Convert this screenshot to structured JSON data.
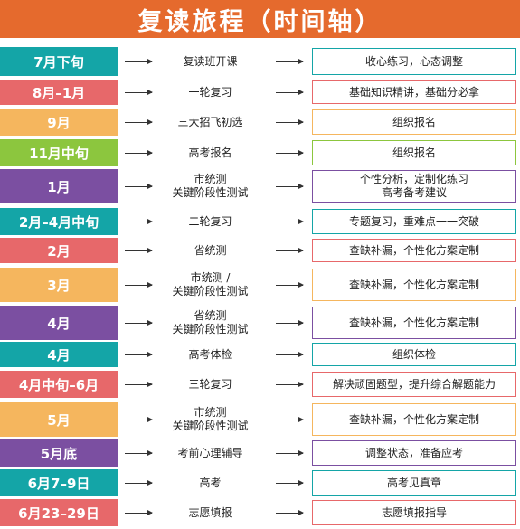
{
  "title": "复读旅程（时间轴）",
  "rows": [
    {
      "date": "7月下旬",
      "event": "复读班开课",
      "detail": "收心练习，心态调整",
      "color": "#14a5a7"
    },
    {
      "date": "8月–1月",
      "event": "一轮复习",
      "detail": "基础知识精讲，基础分必拿",
      "color": "#e7686a"
    },
    {
      "date": "9月",
      "event": "三大招飞初选",
      "detail": "组织报名",
      "color": "#f5b65e"
    },
    {
      "date": "11月中旬",
      "event": "高考报名",
      "detail": "组织报名",
      "color": "#8cc63e"
    },
    {
      "date": "1月",
      "event": "市统测\n关键阶段性测试",
      "detail": "个性分析，定制化练习\n高考备考建议",
      "color": "#7b4fa1"
    },
    {
      "date": "2月–4月中旬",
      "event": "二轮复习",
      "detail": "专题复习，重难点一一突破",
      "color": "#14a5a7"
    },
    {
      "date": "2月",
      "event": "省统测",
      "detail": "查缺补漏，个性化方案定制",
      "color": "#e7686a"
    },
    {
      "date": "3月",
      "event": "市统测 /\n关键阶段性测试",
      "detail": "查缺补漏，个性化方案定制",
      "color": "#f5b65e"
    },
    {
      "date": "4月",
      "event": "省统测\n关键阶段性测试",
      "detail": "查缺补漏，个性化方案定制",
      "color": "#7b4fa1"
    },
    {
      "date": "4月",
      "event": "高考体检",
      "detail": "组织体检",
      "color": "#14a5a7"
    },
    {
      "date": "4月中旬–6月",
      "event": "三轮复习",
      "detail": "解决顽固题型，提升综合解题能力",
      "color": "#e7686a"
    },
    {
      "date": "5月",
      "event": "市统测\n关键阶段性测试",
      "detail": "查缺补漏，个性化方案定制",
      "color": "#f5b65e"
    },
    {
      "date": "5月底",
      "event": "考前心理辅导",
      "detail": "调整状态，准备应考",
      "color": "#7b4fa1"
    },
    {
      "date": "6月7–9日",
      "event": "高考",
      "detail": "高考见真章",
      "color": "#14a5a7"
    },
    {
      "date": "6月23–29日",
      "event": "志愿填报",
      "detail": "志愿填报指导",
      "color": "#e7686a"
    }
  ]
}
